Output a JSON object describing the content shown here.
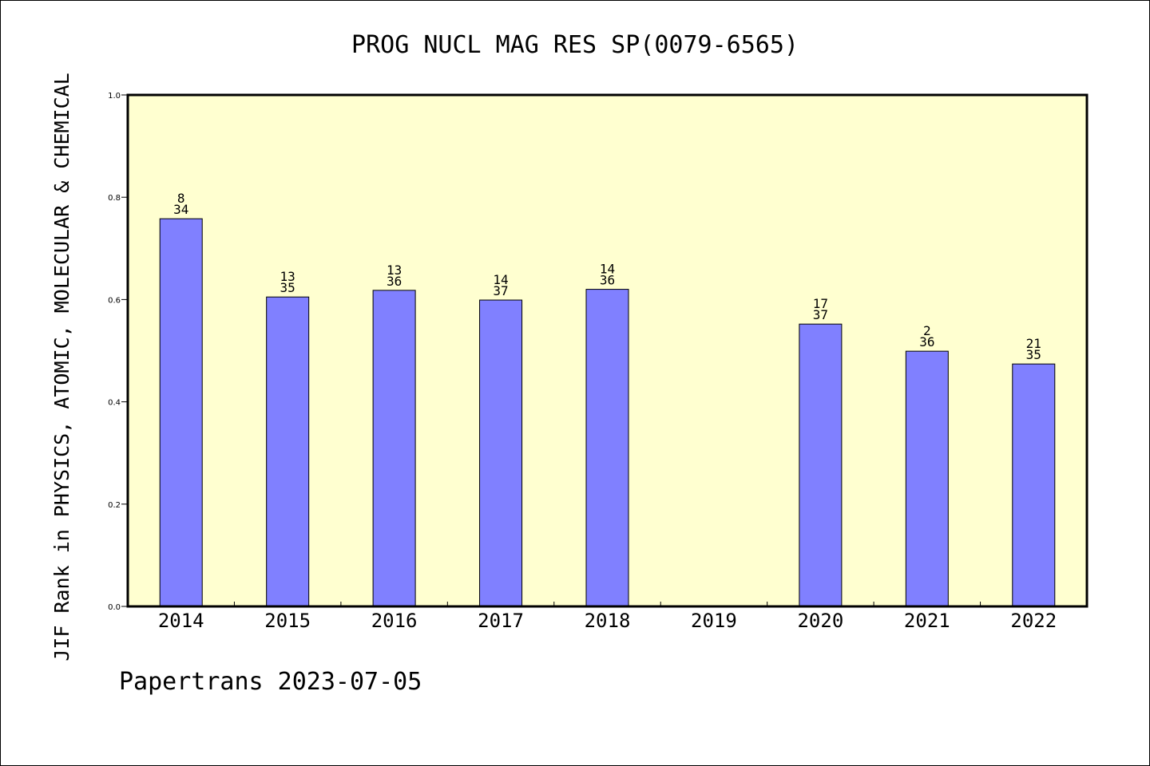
{
  "chart_data": {
    "type": "bar",
    "title": "PROG NUCL MAG RES SP(0079-6565)",
    "ylabel": "JIF Rank in PHYSICS, ATOMIC, MOLECULAR & CHEMICAL",
    "xlabel": "",
    "categories": [
      "2014",
      "2015",
      "2016",
      "2017",
      "2018",
      "2019",
      "2020",
      "2021",
      "2022"
    ],
    "values": [
      0.758,
      0.605,
      0.618,
      0.599,
      0.62,
      null,
      0.552,
      0.499,
      0.474
    ],
    "bar_labels": [
      {
        "rank": "8",
        "total": "34"
      },
      {
        "rank": "13",
        "total": "35"
      },
      {
        "rank": "13",
        "total": "36"
      },
      {
        "rank": "14",
        "total": "37"
      },
      {
        "rank": "14",
        "total": "36"
      },
      null,
      {
        "rank": "17",
        "total": "37"
      },
      {
        "rank": "2",
        "total": "36"
      },
      {
        "rank": "21",
        "total": "35"
      }
    ],
    "ylim": [
      0,
      1.0
    ],
    "yticks": [
      "0.0",
      "0.2",
      "0.4",
      "0.6",
      "0.8",
      "1.0"
    ],
    "grid": false,
    "colors": {
      "plot_background": "#ffffd0",
      "bar_fill": "#8080ff",
      "bar_stroke": "#000000"
    }
  },
  "footer": "Papertrans 2023-07-05"
}
